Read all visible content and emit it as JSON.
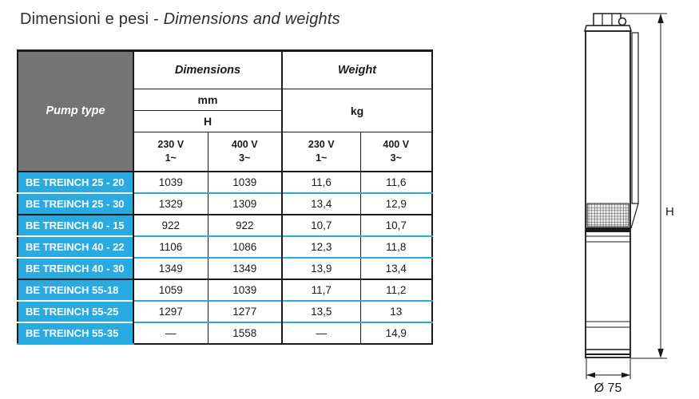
{
  "title": {
    "normal": "Dimensioni e pesi - ",
    "english": "Dimensions and weights"
  },
  "colors": {
    "accent_blue": "#29ABE2",
    "header_gray": "#747474",
    "border_black": "#1A1A1A",
    "row_separator_white": "#FFFFFF"
  },
  "table": {
    "header": {
      "pump_type": "Pump type",
      "dimensions": "Dimensions",
      "weight": "Weight",
      "unit_mm": "mm",
      "dim_h": "H",
      "unit_kg": "kg",
      "volt_cols": [
        {
          "voltage": "230 V",
          "phase": "1~"
        },
        {
          "voltage": "400 V",
          "phase": "3~"
        },
        {
          "voltage": "230 V",
          "phase": "1~"
        },
        {
          "voltage": "400 V",
          "phase": "3~"
        }
      ]
    },
    "rows": [
      {
        "pump": "BE TREINCH 25 - 20",
        "group": 1,
        "values": [
          "1039",
          "1039",
          "11,6",
          "11,6"
        ]
      },
      {
        "pump": "BE TREINCH 25 - 30",
        "group": 1,
        "values": [
          "1329",
          "1309",
          "13,4",
          "12,9"
        ]
      },
      {
        "pump": "BE TREINCH 40 - 15",
        "group": 2,
        "values": [
          "922",
          "922",
          "10,7",
          "10,7"
        ]
      },
      {
        "pump": "BE TREINCH 40 - 22",
        "group": 2,
        "values": [
          "1106",
          "1086",
          "12,3",
          "11,8"
        ]
      },
      {
        "pump": "BE TREINCH 40 - 30",
        "group": 2,
        "values": [
          "1349",
          "1349",
          "13,9",
          "13,4"
        ]
      },
      {
        "pump": "BE TREINCH 55-18",
        "group": 3,
        "values": [
          "1059",
          "1039",
          "11,7",
          "11,2"
        ]
      },
      {
        "pump": "BE TREINCH 55-25",
        "group": 3,
        "values": [
          "1297",
          "1277",
          "13,5",
          "13"
        ]
      },
      {
        "pump": "BE TREINCH 55-35",
        "group": 3,
        "values": [
          "—",
          "1558",
          "—",
          "14,9"
        ]
      }
    ]
  },
  "drawing": {
    "h_label": "H",
    "diameter_label": "Ø 75"
  }
}
